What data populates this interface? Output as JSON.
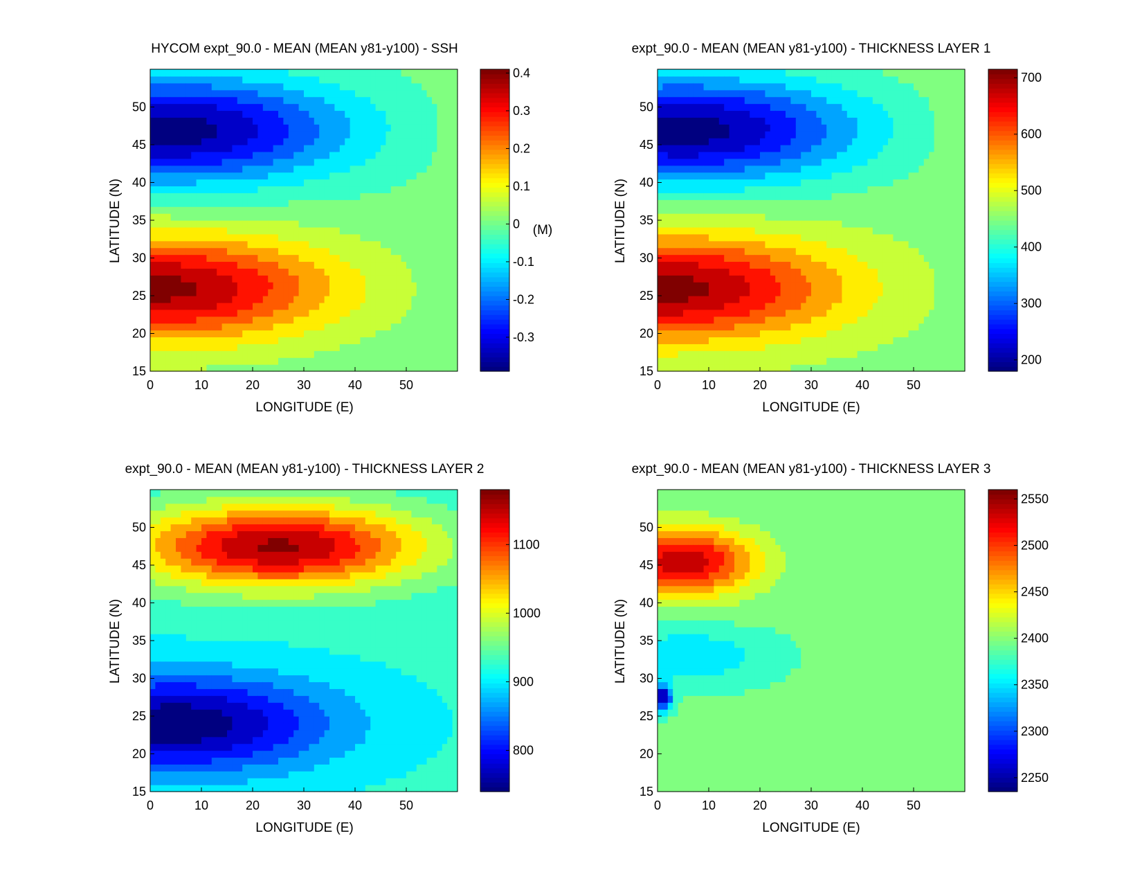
{
  "figure": {
    "description_colormap": "jet"
  },
  "chart_data": [
    {
      "type": "contour",
      "title": "HYCOM expt_90.0 - MEAN (MEAN y81-y100) - SSH",
      "xlabel": "LONGITUDE (E)",
      "ylabel": "LATITUDE (N)",
      "xlim": [
        0,
        60
      ],
      "ylim": [
        15,
        55
      ],
      "xticks": [
        "0",
        "10",
        "20",
        "30",
        "40",
        "50"
      ],
      "xtick_values": [
        0,
        10,
        20,
        30,
        40,
        50
      ],
      "yticks": [
        "15",
        "20",
        "25",
        "30",
        "35",
        "40",
        "45",
        "50"
      ],
      "ytick_values": [
        15,
        20,
        25,
        30,
        35,
        40,
        45,
        50
      ],
      "colorbar": {
        "range": [
          -0.39,
          0.41
        ],
        "ticks": [
          "-0.3",
          "-0.2",
          "-0.1",
          "0",
          "0.1",
          "0.2",
          "0.3",
          "0.4"
        ],
        "tick_values": [
          -0.3,
          -0.2,
          -0.1,
          0,
          0.1,
          0.2,
          0.3,
          0.4
        ],
        "unit_label": "(M)"
      },
      "features": {
        "high_center": [
          2,
          26
        ],
        "high_value": 0.4,
        "low_center": [
          4,
          47
        ],
        "low_value": -0.39,
        "gyre_boundary_lat": 36,
        "background_value": 0.0
      }
    },
    {
      "type": "contour",
      "title": "expt_90.0 - MEAN (MEAN y81-y100) - THICKNESS LAYER 1",
      "xlabel": "LONGITUDE (E)",
      "ylabel": "LATITUDE (N)",
      "xlim": [
        0,
        60
      ],
      "ylim": [
        15,
        55
      ],
      "xticks": [
        "0",
        "10",
        "20",
        "30",
        "40",
        "50"
      ],
      "xtick_values": [
        0,
        10,
        20,
        30,
        40,
        50
      ],
      "yticks": [
        "15",
        "20",
        "25",
        "30",
        "35",
        "40",
        "45",
        "50"
      ],
      "ytick_values": [
        15,
        20,
        25,
        30,
        35,
        40,
        45,
        50
      ],
      "colorbar": {
        "range": [
          180,
          715
        ],
        "ticks": [
          "200",
          "300",
          "400",
          "500",
          "600",
          "700"
        ],
        "tick_values": [
          200,
          300,
          400,
          500,
          600,
          700
        ],
        "unit_label": ""
      },
      "features": {
        "high_center": [
          2,
          26
        ],
        "high_value": 710,
        "low_center": [
          5,
          47
        ],
        "low_value": 180,
        "gyre_boundary_lat": 36,
        "background_value": 450
      }
    },
    {
      "type": "contour",
      "title": "expt_90.0 - MEAN (MEAN y81-y100) - THICKNESS LAYER 2",
      "xlabel": "LONGITUDE (E)",
      "ylabel": "LATITUDE (N)",
      "xlim": [
        0,
        60
      ],
      "ylim": [
        15,
        55
      ],
      "xticks": [
        "0",
        "10",
        "20",
        "30",
        "40",
        "50"
      ],
      "xtick_values": [
        0,
        10,
        20,
        30,
        40,
        50
      ],
      "yticks": [
        "15",
        "20",
        "25",
        "30",
        "35",
        "40",
        "45",
        "50"
      ],
      "ytick_values": [
        15,
        20,
        25,
        30,
        35,
        40,
        45,
        50
      ],
      "colorbar": {
        "range": [
          740,
          1180
        ],
        "ticks": [
          "800",
          "900",
          "1000",
          "1100"
        ],
        "tick_values": [
          800,
          900,
          1000,
          1100
        ],
        "unit_label": ""
      },
      "features": {
        "high_center": [
          25,
          47.5
        ],
        "high_value": 1170,
        "low_center": [
          5,
          24
        ],
        "low_value": 730,
        "gyre_boundary_lat": 37,
        "background_value": 920
      }
    },
    {
      "type": "contour",
      "title": "expt_90.0 - MEAN (MEAN y81-y100) - THICKNESS LAYER 3",
      "xlabel": "LONGITUDE (E)",
      "ylabel": "LATITUDE (N)",
      "xlim": [
        0,
        60
      ],
      "ylim": [
        15,
        55
      ],
      "xticks": [
        "0",
        "10",
        "20",
        "30",
        "40",
        "50"
      ],
      "xtick_values": [
        0,
        10,
        20,
        30,
        40,
        50
      ],
      "yticks": [
        "15",
        "20",
        "25",
        "30",
        "35",
        "40",
        "45",
        "50"
      ],
      "ytick_values": [
        15,
        20,
        25,
        30,
        35,
        40,
        45,
        50
      ],
      "colorbar": {
        "range": [
          2235,
          2560
        ],
        "ticks": [
          "2250",
          "2300",
          "2350",
          "2400",
          "2450",
          "2500",
          "2550"
        ],
        "tick_values": [
          2250,
          2300,
          2350,
          2400,
          2450,
          2500,
          2550
        ],
        "unit_label": ""
      },
      "features": {
        "high_center": [
          5,
          45.5
        ],
        "high_value": 2545,
        "low_center": [
          1,
          27.5
        ],
        "low_value": 2240,
        "secondary_low_center": [
          6,
          33
        ],
        "secondary_low_value": 2340,
        "gyre_boundary_lat": 38,
        "background_value": 2390
      }
    }
  ]
}
